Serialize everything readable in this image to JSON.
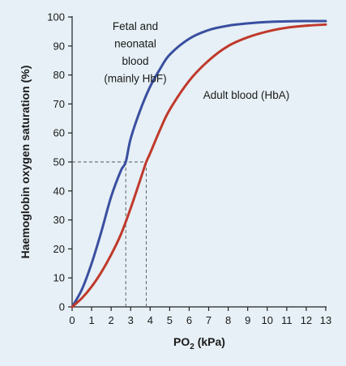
{
  "chart_data": {
    "type": "line",
    "xlabel": "PO2 (kPa)",
    "xlabel_main": "PO",
    "xlabel_sub": "2",
    "xlabel_unit": " (kPa)",
    "ylabel": "Haemoglobin oxygen saturation (%)",
    "xlim": [
      0,
      13
    ],
    "ylim": [
      0,
      100
    ],
    "xticks": [
      0,
      1,
      2,
      3,
      4,
      5,
      6,
      7,
      8,
      9,
      10,
      11,
      12,
      13
    ],
    "yticks": [
      0,
      10,
      20,
      30,
      40,
      50,
      60,
      70,
      80,
      90,
      100
    ],
    "grid": false,
    "series": [
      {
        "name": "Fetal and neonatal blood (mainly HbF)",
        "label_lines": [
          "Fetal and",
          "neonatal",
          "blood",
          "(mainly HbF)"
        ],
        "color": "#3a4fa0",
        "x": [
          0,
          0.5,
          1,
          1.5,
          2,
          2.5,
          2.75,
          3,
          3.5,
          4,
          4.5,
          5,
          6,
          7,
          8,
          9,
          10,
          11,
          12,
          13
        ],
        "y": [
          0,
          6,
          15,
          26,
          38,
          47,
          50,
          58,
          68,
          76,
          82,
          87,
          92.5,
          95.5,
          97,
          97.8,
          98.3,
          98.5,
          98.6,
          98.6
        ]
      },
      {
        "name": "Adult blood (HbA)",
        "label_lines": [
          "Adult blood (HbA)"
        ],
        "color": "#c0392b",
        "x": [
          0,
          0.5,
          1,
          1.5,
          2,
          2.5,
          3,
          3.5,
          3.8,
          4,
          4.5,
          5,
          6,
          7,
          8,
          9,
          10,
          11,
          12,
          13
        ],
        "y": [
          0,
          3,
          7,
          12,
          18,
          25,
          34,
          44,
          50,
          53,
          61,
          68,
          78,
          85,
          90,
          93,
          95,
          96.3,
          97,
          97.4
        ]
      }
    ],
    "reference_lines": [
      {
        "y": 50,
        "x": 2.75
      },
      {
        "y": 50,
        "x": 3.8
      }
    ]
  }
}
